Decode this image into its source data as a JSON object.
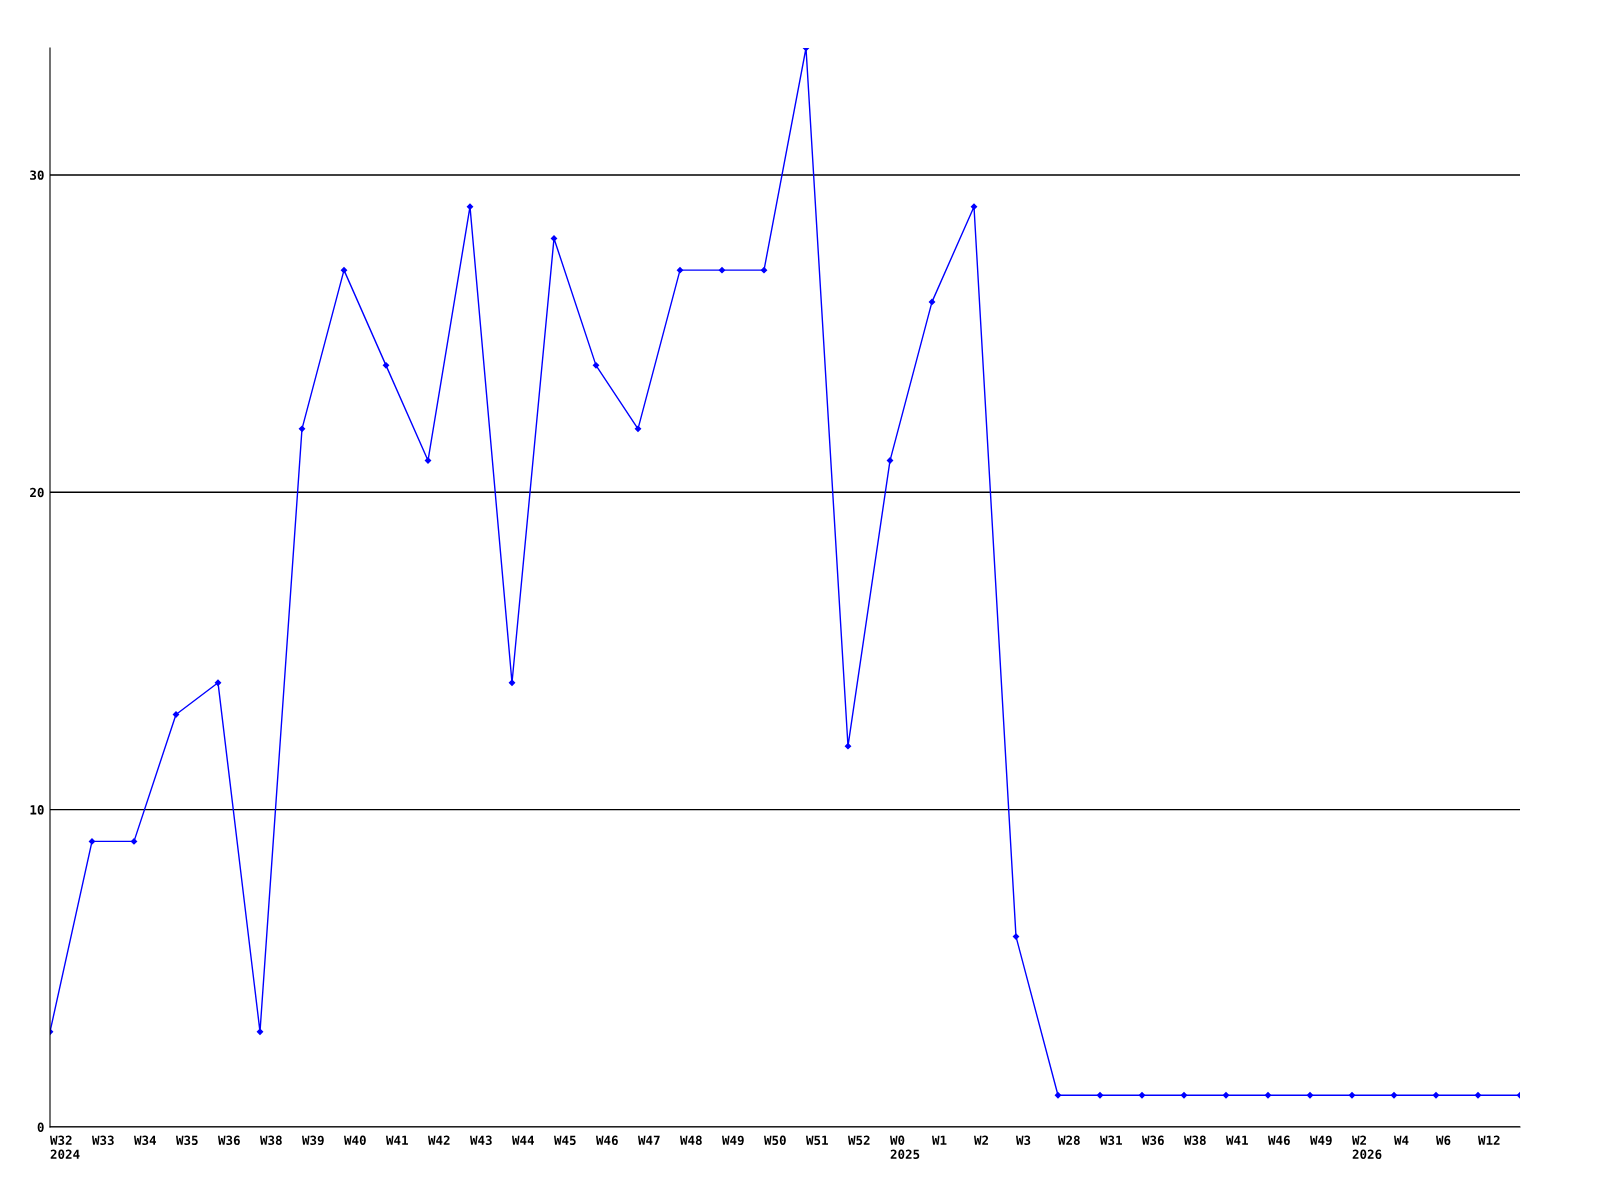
{
  "chart_data": {
    "type": "line",
    "categories": [
      "W32\n2024",
      "W33",
      "W34",
      "W35",
      "W36",
      "W38",
      "W39",
      "W40",
      "W41",
      "W42",
      "W43",
      "W44",
      "W45",
      "W46",
      "W47",
      "W48",
      "W49",
      "W50",
      "W51",
      "W52",
      "W0\n2025",
      "W1",
      "W2",
      "W3",
      "W28",
      "W31",
      "W36",
      "W38",
      "W41",
      "W46",
      "W49",
      "W2\n2026",
      "W4",
      "W6",
      "W12",
      null
    ],
    "series": [
      {
        "color": "#0000ff",
        "values": [
          3,
          9,
          9,
          13,
          14,
          3,
          22,
          27,
          24,
          21,
          29,
          14,
          28,
          24,
          22,
          27,
          27,
          27,
          34,
          12,
          21,
          26,
          29,
          6,
          1,
          1,
          1,
          1,
          1,
          1,
          1,
          1,
          1,
          1,
          1,
          1
        ]
      }
    ],
    "ylim": [
      0,
      34
    ],
    "yticks": [
      0,
      10,
      20,
      30
    ],
    "grid": "y",
    "marker": "diamond",
    "line_style": "solid",
    "legend": false
  }
}
